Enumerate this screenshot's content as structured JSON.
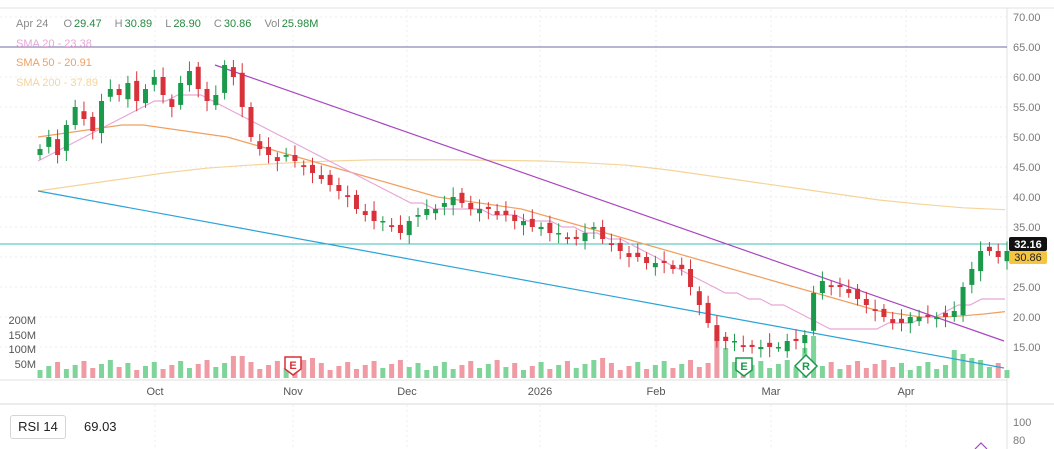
{
  "legend": {
    "date": "Apr 24",
    "open_label": "O",
    "open": "29.47",
    "high_label": "H",
    "high": "30.89",
    "low_label": "L",
    "low": "28.90",
    "close_label": "C",
    "close": "30.86",
    "vol_label": "Vol",
    "vol": "25.98M",
    "sma20": "SMA 20 - 23.38",
    "sma50": "SMA 50 - 20.91",
    "sma200": "SMA 200 - 37.89"
  },
  "colors": {
    "up": "#1a9a4a",
    "down": "#d8313a",
    "sma20": "#e8a6d8",
    "sma50": "#f0a060",
    "sma200": "#f5d49a",
    "trend_upper": "#a846c0",
    "trend_lower": "#2aa3d8",
    "resistance": "#6c6ca8",
    "support": "#3fb8b8",
    "vol_up": "#7fd49a",
    "vol_down": "#f09aa4"
  },
  "price_badges": {
    "last": "32.16",
    "close": "30.86"
  },
  "rsi": {
    "label": "RSI 14",
    "value": "69.03",
    "ticks": [
      "100",
      "80"
    ]
  },
  "events": [
    {
      "label": "E",
      "date": "Nov"
    },
    {
      "label": "E",
      "date": "Feb"
    },
    {
      "label": "R",
      "date": "Mar"
    }
  ],
  "chart_data": {
    "type": "candlestick",
    "x_ticks": [
      "Oct",
      "Nov",
      "Dec",
      "2026",
      "Feb",
      "Mar",
      "Apr"
    ],
    "y_ticks": [
      70,
      65,
      60,
      55,
      50,
      45,
      40,
      35,
      30,
      25,
      20,
      15
    ],
    "ylim": [
      11,
      71
    ],
    "volume_ticks": [
      "200M",
      "150M",
      "100M",
      "50M"
    ],
    "horizontal_lines": [
      65.0,
      32.16
    ],
    "closes": [
      48,
      50,
      47,
      52,
      55,
      53,
      51,
      56,
      58,
      57,
      59,
      56,
      58,
      60,
      57,
      55,
      59,
      61,
      58,
      56,
      57,
      62,
      60,
      55,
      50,
      48,
      47,
      46,
      47,
      46,
      45,
      44,
      43,
      42,
      41,
      40,
      38,
      37,
      36,
      36,
      35,
      34,
      36,
      37,
      38,
      38,
      39,
      40,
      39,
      38,
      38,
      38,
      37,
      37,
      36,
      36,
      35,
      35,
      34,
      34,
      33,
      33,
      34,
      35,
      33,
      32,
      31,
      30,
      30,
      29,
      29,
      29,
      28,
      28,
      25,
      22,
      19,
      16,
      16,
      16,
      15,
      15,
      15,
      15,
      15,
      16,
      16,
      17,
      24,
      26,
      25,
      25,
      24,
      23,
      22,
      21,
      20,
      19,
      19,
      20,
      20,
      20,
      20,
      20,
      21,
      25,
      28,
      31,
      31,
      30,
      31
    ],
    "sma20": [
      46,
      47,
      48,
      49,
      50,
      51,
      52,
      53,
      54,
      55,
      56,
      56,
      57,
      57,
      57,
      56,
      55,
      54,
      53,
      52,
      51,
      50,
      49,
      48,
      47,
      46,
      45,
      44,
      43,
      42,
      41,
      40,
      39,
      39,
      38,
      38,
      38,
      38,
      38,
      37,
      37,
      37,
      36,
      36,
      36,
      35,
      35,
      34,
      34,
      33,
      33,
      32,
      31,
      30,
      29,
      28,
      27,
      26,
      25,
      24,
      24,
      23,
      23,
      22,
      22,
      21,
      20,
      19,
      18,
      18,
      18,
      18,
      18,
      19,
      19,
      19,
      20,
      20,
      21,
      22,
      22,
      23,
      23,
      23
    ],
    "sma50": [
      50,
      50.5,
      51,
      51.5,
      52,
      52,
      51.5,
      51,
      50.5,
      50,
      49,
      48,
      47,
      46,
      45,
      44,
      43,
      42,
      41,
      40,
      39.5,
      39,
      38.5,
      38,
      37,
      36,
      35,
      34,
      33,
      32,
      31,
      30,
      29,
      28,
      27,
      26,
      25,
      24,
      23,
      22,
      21,
      20.5,
      20,
      20,
      20.2,
      20.5,
      20.9
    ],
    "sma200": [
      41,
      42,
      43,
      44,
      44.8,
      45.3,
      45.7,
      46,
      46.2,
      46.2,
      46.2,
      46.1,
      46,
      45.7,
      45.3,
      44.5,
      43.5,
      42.5,
      41.5,
      40.5,
      39.5,
      38.8,
      38.2,
      37.89
    ],
    "trendlines": [
      {
        "name": "",
        "from": [
          "Sep",
          62.0
        ],
        "to": [
          "Apr",
          16.0
        ]
      },
      {
        "name": "",
        "from": [
          "Sep",
          41.0
        ],
        "to": [
          "Apr",
          11.5
        ]
      }
    ]
  }
}
